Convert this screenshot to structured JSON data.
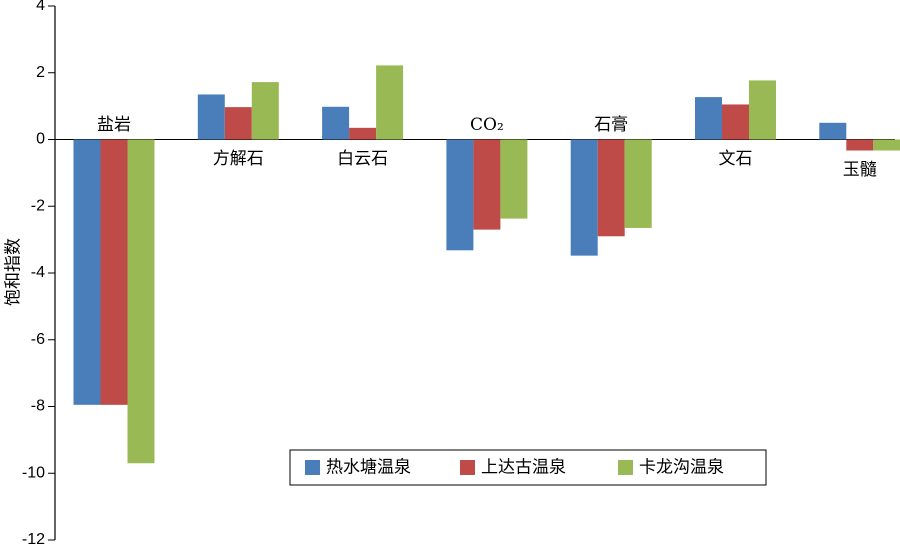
{
  "chart_data": {
    "type": "bar",
    "y_label": "饱和指数",
    "categories": [
      "盐岩",
      "方解石",
      "白云石",
      "CO₂",
      "石膏",
      "文石",
      "玉髓"
    ],
    "series": [
      {
        "name": "热水塘温泉",
        "color": "#4a7ebb",
        "values": [
          -7.95,
          1.35,
          0.98,
          -3.32,
          -3.48,
          1.27,
          0.5
        ]
      },
      {
        "name": "上达古温泉",
        "color": "#be4b48",
        "values": [
          -7.95,
          0.97,
          0.35,
          -2.7,
          -2.9,
          1.05,
          -0.33
        ]
      },
      {
        "name": "卡龙沟温泉",
        "color": "#98b954",
        "values": [
          -9.7,
          1.72,
          2.22,
          -2.37,
          -2.65,
          1.77,
          -0.33
        ]
      }
    ],
    "ylim": [
      -12,
      4
    ],
    "yticks": [
      -12,
      -10,
      -8,
      -6,
      -4,
      -2,
      0,
      2,
      4
    ]
  }
}
